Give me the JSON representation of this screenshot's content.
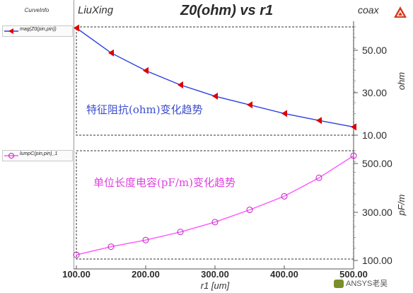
{
  "header": {
    "left": "LiuXing",
    "title": "Z0(ohm) vs r1",
    "right": "coax"
  },
  "legend": {
    "title": "CurveInfo",
    "items": [
      {
        "label": "mag(Z0(pin,pin))",
        "color": "#2b3fe0",
        "marker_color": "#dd0000",
        "marker": "triangle-left"
      },
      {
        "label": "lumpC(pin,pin)_1",
        "color": "#e040e0",
        "marker_color": "#cc00cc",
        "marker": "circle"
      }
    ]
  },
  "chart_data": [
    {
      "type": "line",
      "series": [
        {
          "name": "mag(Z0(pin,pin))",
          "values": [
            59.5,
            48.0,
            39.8,
            33.2,
            28.0,
            24.0,
            20.0,
            16.8,
            13.8
          ]
        }
      ],
      "x": [
        100,
        150,
        200,
        250,
        300,
        350,
        400,
        450,
        500
      ],
      "ylabel": "ohm",
      "yticks": [
        "10.00",
        "30.00",
        "50.00"
      ],
      "ylim": [
        10,
        60
      ],
      "annotation": "特征阻抗(ohm)变化趋势",
      "annotation_color": "#3a4ccc",
      "line_color": "#2b3fe0",
      "marker_color": "#dd0000"
    },
    {
      "type": "line",
      "series": [
        {
          "name": "lumpC(pin,pin)_1",
          "values": [
            117,
            150,
            177,
            210,
            250,
            300,
            355,
            430,
            520
          ]
        }
      ],
      "x": [
        100,
        150,
        200,
        250,
        300,
        350,
        400,
        450,
        500
      ],
      "ylabel": "pF/m",
      "yticks": [
        "100.00",
        "300.00",
        "500.00"
      ],
      "ylim": [
        100,
        540
      ],
      "annotation": "单位长度电容(pF/m)变化趋势",
      "annotation_color": "#e040e0",
      "line_color": "#ff55ff",
      "marker_color": "#bb22bb"
    }
  ],
  "x_axis": {
    "label": "r1 [um]",
    "ticks": [
      "100.00",
      "200.00",
      "300.00",
      "400.00",
      "500.00"
    ],
    "xlim": [
      100,
      500
    ]
  },
  "watermark": "ANSYS老吴"
}
